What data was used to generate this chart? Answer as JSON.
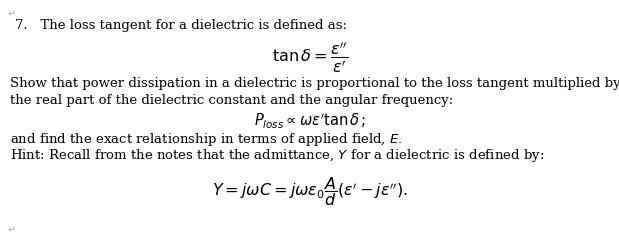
{
  "title_num": "7.",
  "line1": "   The loss tangent for a dielectric is defined as:",
  "formula1": "$\\tan \\delta = \\dfrac{\\varepsilon''}{\\varepsilon'}$",
  "line2": "Show that power dissipation in a dielectric is proportional to the loss tangent multiplied by",
  "line3": "the real part of the dielectric constant and the angular frequency:",
  "formula2": "$P_{loss} \\propto \\omega\\varepsilon'\\mathrm{tan}\\, \\delta\\,;$",
  "line4": "and find the exact relationship in terms of applied field, $E.$",
  "line5": "Hint: Recall from the notes that the admittance, $Y$ for a dielectric is defined by:",
  "formula3": "$Y = j\\omega C = j\\omega\\varepsilon_0\\dfrac{A}{d}(\\varepsilon' - j\\varepsilon'').$",
  "bg_color": "#ffffff",
  "text_color": "#000000",
  "font_size_body": 9.5,
  "font_size_formula": 10.5,
  "figwidth": 6.19,
  "figheight": 2.47,
  "dpi": 100
}
